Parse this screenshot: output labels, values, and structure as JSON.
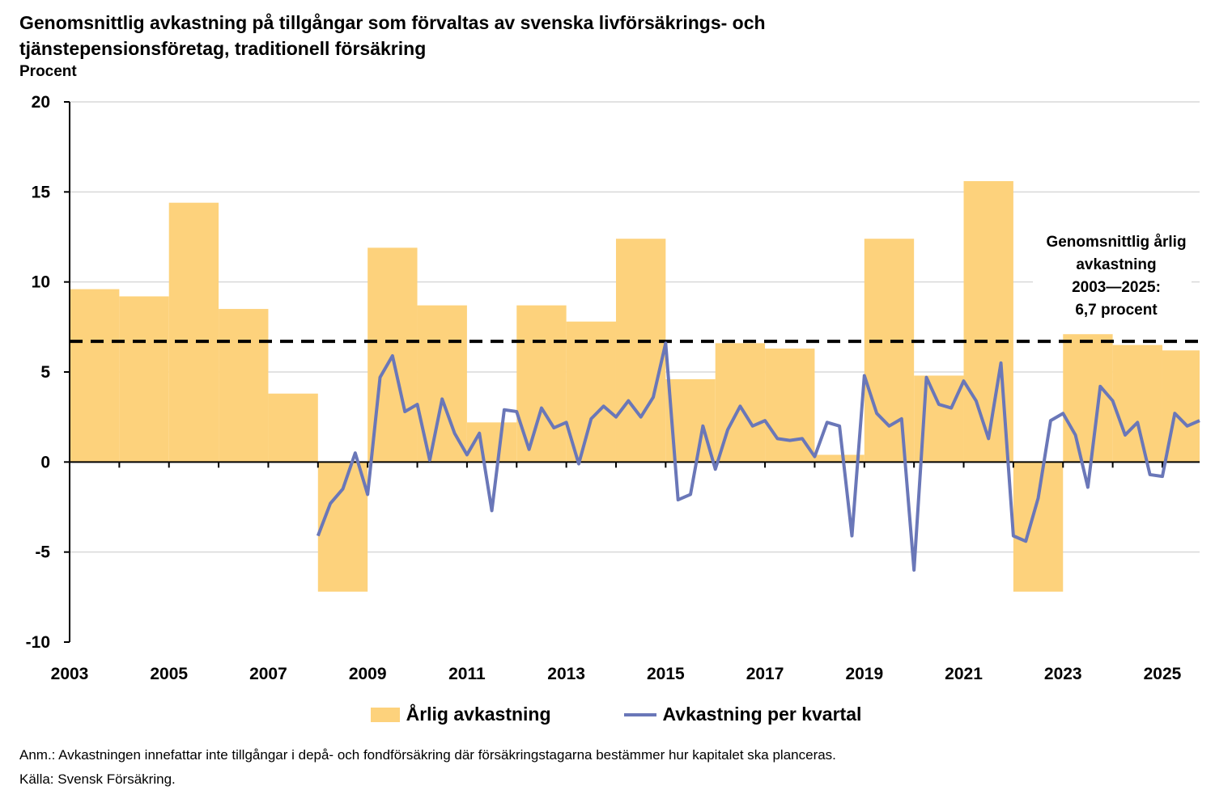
{
  "title": "Genomsnittlig avkastning på tillgångar som förvaltas av svenska livförsäkrings- och tjänstepensionsföretag, traditionell försäkring",
  "unit_label": "Procent",
  "annotation": [
    "Genomsnittlig årlig",
    "avkastning",
    "2003—2025:",
    "6,7 procent"
  ],
  "legend": {
    "bars": "Årlig avkastning",
    "line": "Avkastning per kvartal"
  },
  "notes": {
    "anm": "Anm.: Avkastningen innefattar inte tillgångar i depå- och fondförsäkring där försäkringstagarna bestämmer hur kapitalet ska planceras.",
    "source": "Källa: Svensk Försäkring."
  },
  "colors": {
    "bar": "#fdd27c",
    "line": "#6a77b8",
    "grid": "#d9d9d9",
    "average": "#000000"
  },
  "chart_data": {
    "type": "bar+line",
    "ylim": [
      -10,
      20
    ],
    "yticks": [
      -10,
      -5,
      0,
      5,
      10,
      15,
      20
    ],
    "xlim": [
      2003,
      2025.75
    ],
    "xtick_labels": [
      "2003",
      "2005",
      "2007",
      "2009",
      "2011",
      "2013",
      "2015",
      "2017",
      "2019",
      "2021",
      "2023",
      "2025"
    ],
    "average": 6.7,
    "bars": {
      "name": "Årlig avkastning",
      "years": [
        2003,
        2004,
        2005,
        2006,
        2007,
        2008,
        2009,
        2010,
        2011,
        2012,
        2013,
        2014,
        2015,
        2016,
        2017,
        2018,
        2019,
        2020,
        2021,
        2022,
        2023,
        2024,
        2025
      ],
      "values": [
        9.6,
        9.2,
        14.4,
        8.5,
        3.8,
        -7.2,
        11.9,
        8.7,
        2.2,
        8.7,
        7.8,
        12.4,
        4.6,
        6.6,
        6.3,
        0.4,
        12.4,
        4.8,
        15.6,
        -7.2,
        7.1,
        6.5,
        6.2
      ]
    },
    "line": {
      "name": "Avkastning per kvartal",
      "x": [
        2008.0,
        2008.25,
        2008.5,
        2008.75,
        2009.0,
        2009.25,
        2009.5,
        2009.75,
        2010.0,
        2010.25,
        2010.5,
        2010.75,
        2011.0,
        2011.25,
        2011.5,
        2011.75,
        2012.0,
        2012.25,
        2012.5,
        2012.75,
        2013.0,
        2013.25,
        2013.5,
        2013.75,
        2014.0,
        2014.25,
        2014.5,
        2014.75,
        2015.0,
        2015.25,
        2015.5,
        2015.75,
        2016.0,
        2016.25,
        2016.5,
        2016.75,
        2017.0,
        2017.25,
        2017.5,
        2017.75,
        2018.0,
        2018.25,
        2018.5,
        2018.75,
        2019.0,
        2019.25,
        2019.5,
        2019.75,
        2020.0,
        2020.25,
        2020.5,
        2020.75,
        2021.0,
        2021.25,
        2021.5,
        2021.75,
        2022.0,
        2022.25,
        2022.5,
        2022.75,
        2023.0,
        2023.25,
        2023.5,
        2023.75,
        2024.0,
        2024.25,
        2024.5,
        2024.75,
        2025.0,
        2025.25,
        2025.5,
        2025.75
      ],
      "values": [
        -4.1,
        -2.3,
        -1.5,
        0.5,
        -1.8,
        4.7,
        5.9,
        2.8,
        3.2,
        0.1,
        3.5,
        1.6,
        0.4,
        1.6,
        -2.7,
        2.9,
        2.8,
        0.7,
        3.0,
        1.9,
        2.2,
        -0.1,
        2.4,
        3.1,
        2.5,
        3.4,
        2.5,
        3.6,
        6.6,
        -2.1,
        -1.8,
        2.0,
        -0.4,
        1.8,
        3.1,
        2.0,
        2.3,
        1.3,
        1.2,
        1.3,
        0.3,
        2.2,
        2.0,
        -4.1,
        4.8,
        2.7,
        2.0,
        2.4,
        -6.0,
        4.7,
        3.2,
        3.0,
        4.5,
        3.4,
        1.3,
        5.5,
        -4.1,
        -4.4,
        -2.0,
        2.3,
        2.7,
        1.5,
        -1.4,
        4.2,
        3.4,
        1.5,
        2.2,
        -0.7,
        -0.8,
        2.7,
        2.0,
        2.3
      ]
    }
  }
}
